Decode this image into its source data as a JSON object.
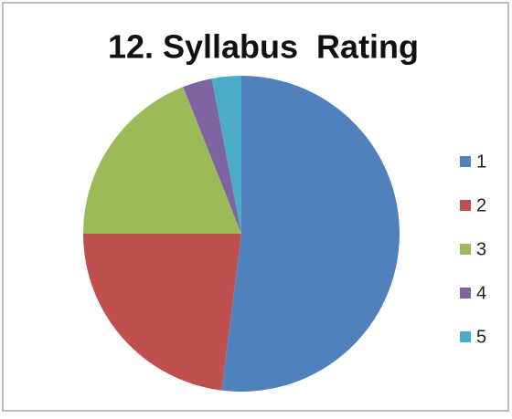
{
  "chart_data": {
    "type": "pie",
    "title": "12. Syllabus  Rating",
    "categories": [
      "1",
      "2",
      "3",
      "4",
      "5"
    ],
    "values": [
      52,
      23,
      19,
      3,
      3
    ],
    "colors": [
      "#4f81bd",
      "#c0504d",
      "#9bbb59",
      "#8064a2",
      "#4bacc6"
    ],
    "legend": "right"
  }
}
